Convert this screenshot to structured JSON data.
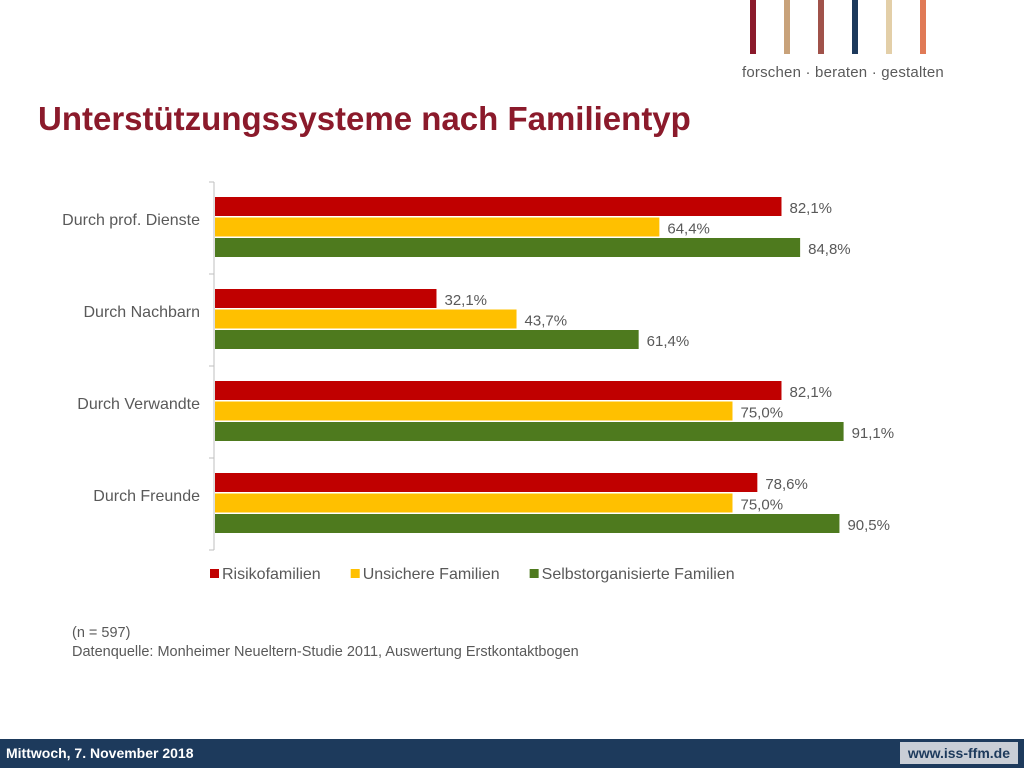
{
  "logo": {
    "tagline": "forschen · beraten · gestalten",
    "stripe_colors": [
      "#8b1a2b",
      "#c8a27a",
      "#a0524a",
      "#1d3a5c",
      "#e3cfa8",
      "#e07a56"
    ]
  },
  "slide": {
    "title": "Unterstützungssysteme nach Familientyp"
  },
  "chart_data": {
    "type": "bar",
    "orientation": "horizontal",
    "categories": [
      "Durch prof. Dienste",
      "Durch Nachbarn",
      "Durch Verwandte",
      "Durch Freunde"
    ],
    "series": [
      {
        "name": "Risikofamilien",
        "color": "#c00000",
        "values": [
          82.1,
          32.1,
          82.1,
          78.6
        ],
        "labels": [
          "82,1%",
          "32,1%",
          "82,1%",
          "78,6%"
        ]
      },
      {
        "name": "Unsichere Familien",
        "color": "#ffc000",
        "values": [
          64.4,
          43.7,
          75.0,
          75.0
        ],
        "labels": [
          "64,4%",
          "43,7%",
          "75,0%",
          "75,0%"
        ]
      },
      {
        "name": "Selbstorganisierte Familien",
        "color": "#4e7a1e",
        "values": [
          84.8,
          61.4,
          91.1,
          90.5
        ],
        "labels": [
          "84,8%",
          "61,4%",
          "91,1%",
          "90,5%"
        ]
      }
    ],
    "xlim": [
      0,
      100
    ],
    "grid": false,
    "legend_position": "bottom",
    "value_labels": true
  },
  "notes": {
    "sample": "(n = 597)",
    "source": "Datenquelle: Monheimer Neueltern-Studie 2011, Auswertung Erstkontaktbogen"
  },
  "footer": {
    "date": "Mittwoch, 7. November 2018",
    "url": "www.iss-ffm.de"
  }
}
